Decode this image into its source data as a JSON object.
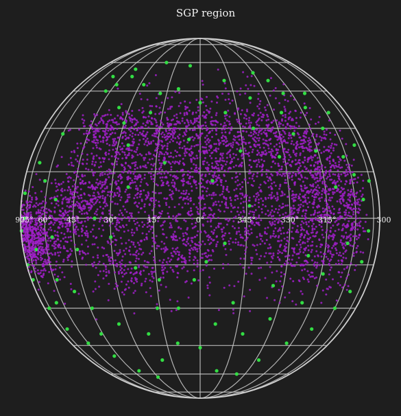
{
  "chart_data": {
    "type": "scatter",
    "title": "SGP region",
    "projection": "orthographic sphere",
    "grid": true,
    "colors": {
      "background": "#1e1e1e",
      "grid": "#cfcfcf",
      "dense_points": "#a020c8",
      "sparse_points": "#33dd44",
      "text": "#f2f2f2"
    },
    "x_tick_labels": [
      "90°",
      "75°",
      "60°",
      "45°",
      "30°",
      "15°",
      "0°",
      "345°",
      "330°",
      "315°",
      "300"
    ],
    "series": [
      {
        "color": "#a020c8",
        "clusters": [
          {
            "x": 75,
            "y": -5,
            "sx": 6,
            "sy": 6,
            "n": 260
          },
          {
            "x": 65,
            "y": -8,
            "sx": 6,
            "sy": 6,
            "n": 220
          },
          {
            "x": 50,
            "y": -2,
            "sx": 10,
            "sy": 8,
            "n": 300
          },
          {
            "x": 40,
            "y": 5,
            "sx": 6,
            "sy": 6,
            "n": 160
          },
          {
            "x": 30,
            "y": 15,
            "sx": 10,
            "sy": 12,
            "n": 340
          },
          {
            "x": 15,
            "y": 5,
            "sx": 12,
            "sy": 15,
            "n": 420
          },
          {
            "x": 5,
            "y": 20,
            "sx": 12,
            "sy": 12,
            "n": 360
          },
          {
            "x": -5,
            "y": 5,
            "sx": 10,
            "sy": 12,
            "n": 320
          },
          {
            "x": -20,
            "y": 15,
            "sx": 12,
            "sy": 15,
            "n": 460
          },
          {
            "x": -35,
            "y": 5,
            "sx": 10,
            "sy": 14,
            "n": 400
          },
          {
            "x": -45,
            "y": 10,
            "sx": 8,
            "sy": 12,
            "n": 320
          },
          {
            "x": -55,
            "y": 0,
            "sx": 6,
            "sy": 10,
            "n": 260
          },
          {
            "x": -25,
            "y": 28,
            "sx": 12,
            "sy": 5,
            "n": 200
          },
          {
            "x": 10,
            "y": 30,
            "sx": 15,
            "sy": 4,
            "n": 220
          },
          {
            "x": 40,
            "y": 28,
            "sx": 8,
            "sy": 4,
            "n": 100
          },
          {
            "x": 25,
            "y": -15,
            "sx": 8,
            "sy": 5,
            "n": 140
          },
          {
            "x": 5,
            "y": -12,
            "sx": 5,
            "sy": 4,
            "n": 80
          },
          {
            "x": -30,
            "y": -10,
            "sx": 10,
            "sy": 5,
            "n": 150
          }
        ]
      },
      {
        "color": "#33dd44",
        "points": [
          [
            78,
            0
          ],
          [
            80,
            8
          ],
          [
            84,
            -15
          ],
          [
            70,
            18
          ],
          [
            60,
            28
          ],
          [
            48,
            45
          ],
          [
            44,
            48
          ],
          [
            38,
            52
          ],
          [
            40,
            56
          ],
          [
            28,
            48
          ],
          [
            22,
            60
          ],
          [
            18,
            44
          ],
          [
            35,
            38
          ],
          [
            30,
            32
          ],
          [
            20,
            36
          ],
          [
            10,
            46
          ],
          [
            0,
            40
          ],
          [
            -10,
            36
          ],
          [
            -22,
            42
          ],
          [
            -30,
            54
          ],
          [
            -36,
            50
          ],
          [
            -40,
            44
          ],
          [
            -48,
            38
          ],
          [
            -52,
            30
          ],
          [
            -58,
            20
          ],
          [
            -62,
            14
          ],
          [
            -66,
            6
          ],
          [
            -70,
            -4
          ],
          [
            -68,
            -14
          ],
          [
            -66,
            -24
          ],
          [
            -60,
            -30
          ],
          [
            -52,
            -38
          ],
          [
            -42,
            -44
          ],
          [
            -32,
            -52
          ],
          [
            -24,
            -60
          ],
          [
            -10,
            -58
          ],
          [
            0,
            -46
          ],
          [
            10,
            -44
          ],
          [
            22,
            -40
          ],
          [
            34,
            -36
          ],
          [
            44,
            -30
          ],
          [
            50,
            -24
          ],
          [
            58,
            -20
          ],
          [
            65,
            -28
          ],
          [
            70,
            -38
          ],
          [
            60,
            -44
          ],
          [
            48,
            -50
          ],
          [
            40,
            -58
          ],
          [
            30,
            -62
          ],
          [
            20,
            -52
          ],
          [
            8,
            -30
          ],
          [
            14,
            -20
          ],
          [
            22,
            -16
          ],
          [
            30,
            -6
          ],
          [
            36,
            0
          ],
          [
            24,
            10
          ],
          [
            12,
            18
          ],
          [
            -4,
            12
          ],
          [
            -14,
            22
          ],
          [
            -28,
            20
          ],
          [
            -36,
            28
          ],
          [
            -44,
            22
          ],
          [
            -50,
            10
          ],
          [
            -56,
            -8
          ],
          [
            -46,
            -18
          ],
          [
            -38,
            -12
          ],
          [
            -26,
            -22
          ],
          [
            -12,
            -28
          ],
          [
            2,
            -20
          ],
          [
            16,
            -30
          ],
          [
            -6,
            -36
          ],
          [
            -18,
            -40
          ],
          [
            -28,
            -34
          ],
          [
            -40,
            -28
          ],
          [
            54,
            6
          ],
          [
            62,
            12
          ],
          [
            68,
            -10
          ],
          [
            56,
            -6
          ],
          [
            44,
            -10
          ],
          [
            4,
            26
          ],
          [
            -20,
            30
          ],
          [
            -34,
            36
          ],
          [
            26,
            24
          ],
          [
            -8,
            -8
          ],
          [
            -16,
            4
          ],
          [
            -54,
            44
          ],
          [
            -62,
            36
          ],
          [
            -70,
            24
          ],
          [
            -74,
            12
          ],
          [
            86,
            -4
          ],
          [
            82,
            -20
          ],
          [
            76,
            -30
          ],
          [
            52,
            52
          ],
          [
            -12,
            50
          ],
          [
            6,
            58
          ],
          [
            46,
            -40
          ],
          [
            -2,
            -14
          ]
        ]
      }
    ]
  }
}
